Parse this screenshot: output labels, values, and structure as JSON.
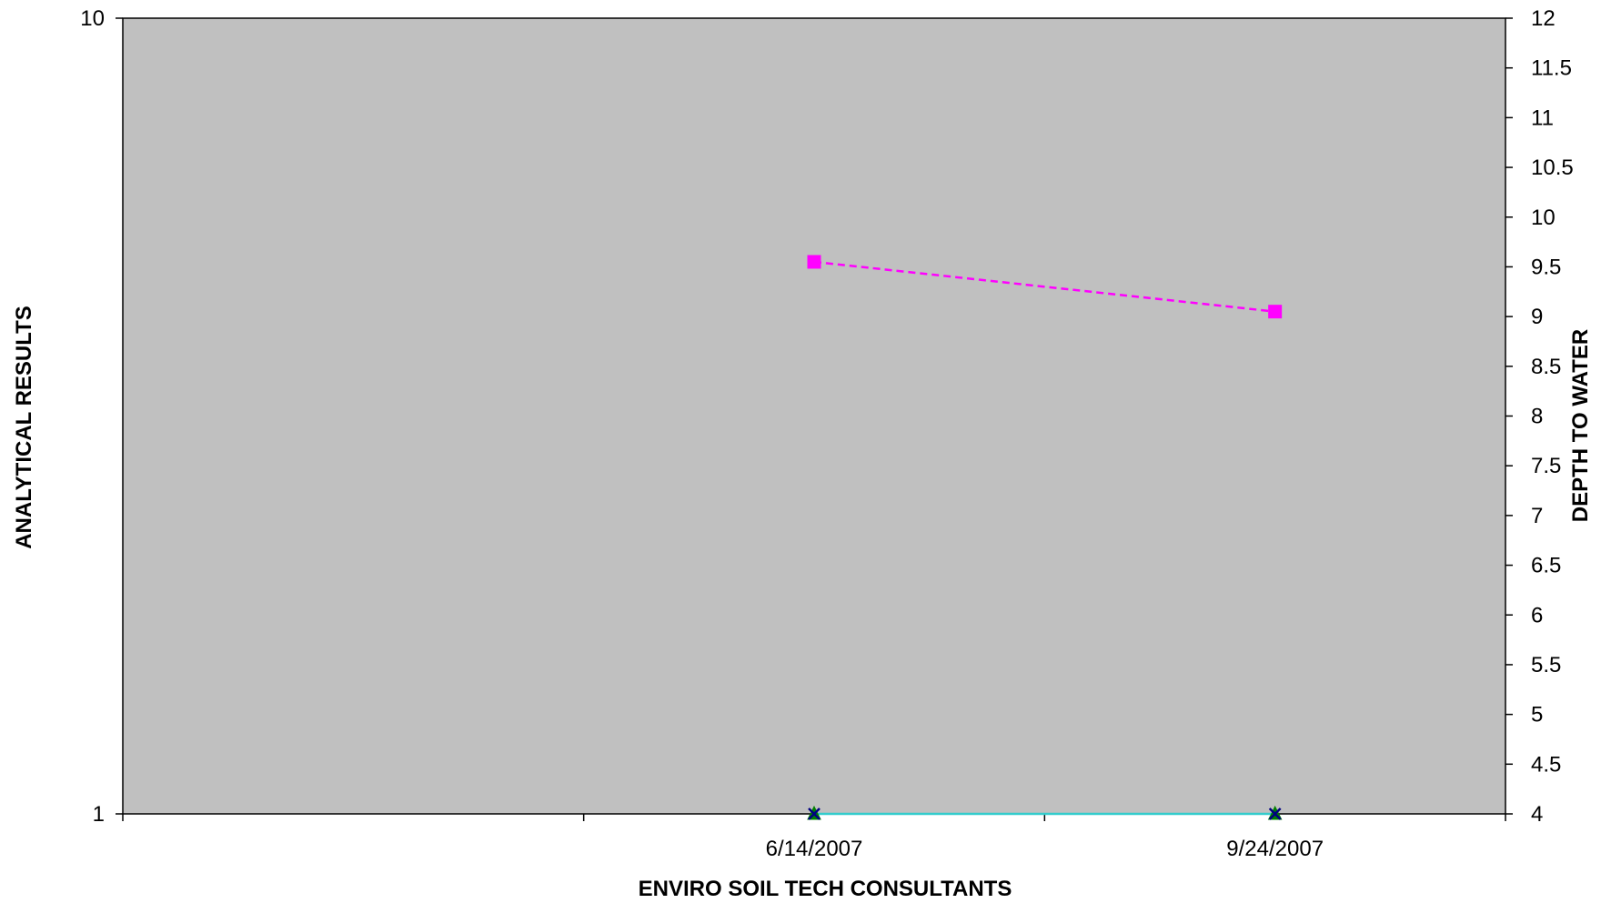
{
  "chart_data": {
    "type": "line",
    "title": "",
    "xlabel": "ENVIRO SOIL TECH CONSULTANTS",
    "ylabel": "ANALYTICAL RESULTS",
    "y2label": "DEPTH TO WATER",
    "plot_background": "#c0c0c0",
    "grid": false,
    "legend": "none",
    "x_categories": [
      "",
      "6/14/2007",
      "9/24/2007"
    ],
    "y_left": {
      "scale": "log",
      "range": [
        1,
        10
      ],
      "ticks": [
        {
          "value": 1,
          "label": "1"
        },
        {
          "value": 10,
          "label": "10"
        }
      ]
    },
    "y_right": {
      "scale": "linear",
      "range": [
        4,
        12
      ],
      "ticks": [
        {
          "value": 4,
          "label": "4"
        },
        {
          "value": 4.5,
          "label": "4.5"
        },
        {
          "value": 5,
          "label": "5"
        },
        {
          "value": 5.5,
          "label": "5.5"
        },
        {
          "value": 6,
          "label": "6"
        },
        {
          "value": 6.5,
          "label": "6.5"
        },
        {
          "value": 7,
          "label": "7"
        },
        {
          "value": 7.5,
          "label": "7.5"
        },
        {
          "value": 8,
          "label": "8"
        },
        {
          "value": 8.5,
          "label": "8.5"
        },
        {
          "value": 9,
          "label": "9"
        },
        {
          "value": 9.5,
          "label": "9.5"
        },
        {
          "value": 10,
          "label": "10"
        },
        {
          "value": 10.5,
          "label": "10.5"
        },
        {
          "value": 11,
          "label": "11"
        },
        {
          "value": 11.5,
          "label": "11.5"
        },
        {
          "value": 12,
          "label": "12"
        }
      ]
    },
    "series": [
      {
        "axis": "right",
        "x": [
          "6/14/2007",
          "9/24/2007"
        ],
        "values": [
          9.55,
          9.05
        ],
        "color": "#ff00ff",
        "line_style": "dashed",
        "marker": "square"
      },
      {
        "axis": "left",
        "x": [
          "6/14/2007",
          "9/24/2007"
        ],
        "values": [
          1,
          1
        ],
        "color": "#33cccc",
        "line_style": "solid",
        "marker": "none"
      },
      {
        "axis": "left",
        "x": [
          "6/14/2007",
          "9/24/2007"
        ],
        "values": [
          1,
          1
        ],
        "color": "#008000",
        "line_style": "none",
        "marker": "triangle"
      },
      {
        "axis": "left",
        "x": [
          "6/14/2007",
          "9/24/2007"
        ],
        "values": [
          1,
          1
        ],
        "color": "#000080",
        "line_style": "none",
        "marker": "x"
      }
    ]
  }
}
